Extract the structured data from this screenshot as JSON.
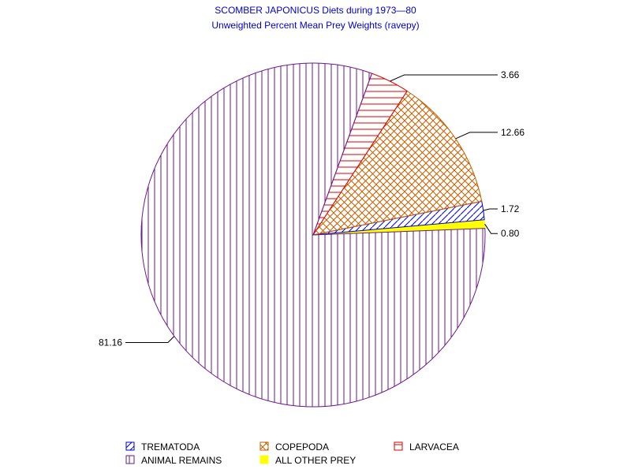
{
  "chart_data": {
    "type": "pie",
    "title": "SCOMBER JAPONICUS Diets during 1973—80",
    "subtitle": "Unweighted Percent Mean Prey Weights (ravepy)",
    "slices": [
      {
        "name": "ALL OTHER PREY",
        "value": 0.8,
        "label": "0.80",
        "color": "#ffff00",
        "pattern": "solid"
      },
      {
        "name": "TREMATODA",
        "value": 1.72,
        "label": "1.72",
        "color": "#0000cc",
        "pattern": "diagonal"
      },
      {
        "name": "COPEPODA",
        "value": 12.66,
        "label": "12.66",
        "color": "#c06000",
        "pattern": "crosshatch"
      },
      {
        "name": "LARVACEA",
        "value": 3.66,
        "label": "3.66",
        "color": "#e00000",
        "pattern": "horizontal"
      },
      {
        "name": "ANIMAL REMAINS",
        "value": 81.16,
        "label": "81.16",
        "color": "#6a1a8a",
        "pattern": "vertical"
      }
    ],
    "legend": {
      "placement": "bottom",
      "items": [
        {
          "name": "TREMATODA",
          "color": "#0000cc",
          "pattern": "diagonal"
        },
        {
          "name": "COPEPODA",
          "color": "#c06000",
          "pattern": "crosshatch"
        },
        {
          "name": "LARVACEA",
          "color": "#e00000",
          "pattern": "horizontal"
        },
        {
          "name": "ANIMAL REMAINS",
          "color": "#6a1a8a",
          "pattern": "vertical"
        },
        {
          "name": "ALL OTHER PREY",
          "color": "#ffff00",
          "pattern": "solid"
        }
      ]
    }
  }
}
